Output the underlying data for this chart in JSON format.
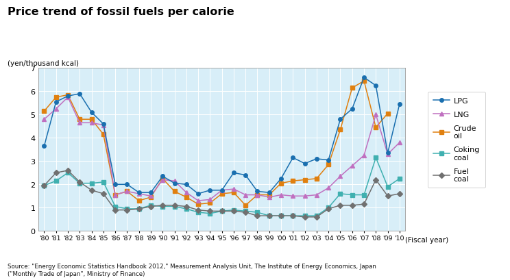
{
  "title": "Price trend of fossil fuels per calorie",
  "ylabel": "(yen/thousand kcal)",
  "xlabel": "(Fiscal year)",
  "source": "Source: \"Energy Economic Statistics Handbook 2012,\" Measurement Analysis Unit, The Institute of Energy Economics, Japan\n(\"Monthly Trade of Japan\", Ministry of Finance)",
  "years": [
    "'80",
    "'81",
    "'82",
    "'83",
    "'84",
    "'85",
    "'86",
    "'87",
    "'88",
    "'89",
    "'90",
    "'91",
    "'92",
    "'93",
    "'94",
    "'95",
    "'96",
    "'97",
    "'98",
    "'99",
    "'00",
    "'01",
    "'02",
    "'03",
    "'04",
    "'05",
    "'06",
    "'07",
    "'08",
    "'09",
    "'10"
  ],
  "LPG": [
    3.65,
    5.55,
    5.8,
    5.9,
    5.1,
    4.6,
    2.0,
    2.0,
    1.65,
    1.65,
    2.35,
    2.05,
    2.0,
    1.6,
    1.75,
    1.75,
    2.5,
    2.4,
    1.7,
    1.65,
    2.25,
    3.15,
    2.9,
    3.1,
    3.05,
    4.8,
    5.25,
    6.6,
    6.25,
    3.35,
    5.45
  ],
  "LNG": [
    4.8,
    5.25,
    5.75,
    4.65,
    4.65,
    4.55,
    1.55,
    1.7,
    1.6,
    1.5,
    2.2,
    2.15,
    1.65,
    1.3,
    1.35,
    1.75,
    1.8,
    1.55,
    1.55,
    1.45,
    1.55,
    1.5,
    1.5,
    1.55,
    1.85,
    2.35,
    2.8,
    3.25,
    5.0,
    3.3,
    3.8
  ],
  "Crude_oil": [
    5.15,
    5.75,
    5.85,
    4.8,
    4.8,
    4.15,
    1.55,
    1.7,
    1.3,
    1.45,
    2.25,
    1.7,
    1.45,
    1.15,
    1.2,
    1.6,
    1.65,
    1.1,
    1.55,
    1.55,
    2.05,
    2.15,
    2.2,
    2.25,
    2.85,
    4.35,
    6.15,
    6.45,
    4.45,
    5.05,
    null
  ],
  "Coking_coal": [
    1.95,
    2.15,
    2.5,
    2.05,
    2.05,
    2.1,
    1.05,
    0.95,
    0.95,
    1.1,
    1.05,
    1.05,
    0.95,
    0.8,
    0.75,
    0.85,
    0.9,
    0.85,
    0.8,
    0.65,
    0.65,
    0.65,
    0.65,
    0.65,
    1.0,
    1.6,
    1.55,
    1.55,
    3.15,
    1.9,
    2.25
  ],
  "Fuel_coal": [
    1.95,
    2.5,
    2.6,
    2.1,
    1.75,
    1.6,
    0.9,
    0.9,
    0.95,
    1.05,
    1.1,
    1.1,
    1.05,
    0.9,
    0.85,
    0.85,
    0.85,
    0.8,
    0.65,
    0.65,
    0.65,
    0.65,
    0.6,
    0.6,
    0.95,
    1.1,
    1.1,
    1.15,
    2.2,
    1.5,
    1.6
  ],
  "LPG_color": "#1a6faf",
  "LNG_color": "#c070c0",
  "Crude_oil_color": "#e08010",
  "Coking_coal_color": "#40b0b0",
  "Fuel_coal_color": "#707070",
  "bg_color": "#d8eef8",
  "ylim": [
    0,
    7
  ],
  "yticks": [
    0,
    1,
    2,
    3,
    4,
    5,
    6,
    7
  ]
}
